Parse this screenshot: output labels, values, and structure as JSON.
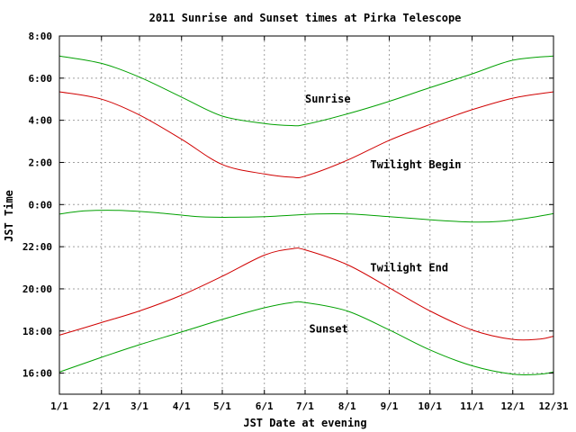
{
  "chart_data": {
    "type": "line",
    "title": "2011 Sunrise and Sunset times at Pirka Telescope",
    "xlabel": "JST Date at evening",
    "ylabel": "JST Time",
    "x_ticks": [
      "1/1",
      "2/1",
      "3/1",
      "4/1",
      "5/1",
      "6/1",
      "7/1",
      "8/1",
      "9/1",
      "10/1",
      "11/1",
      "12/1",
      "12/31"
    ],
    "x_tick_days": [
      1,
      32,
      60,
      91,
      121,
      152,
      182,
      213,
      244,
      274,
      305,
      335,
      365
    ],
    "xlim": [
      1,
      365
    ],
    "y_ticks": [
      "16:00",
      "18:00",
      "20:00",
      "22:00",
      "0:00",
      "2:00",
      "4:00",
      "6:00",
      "8:00"
    ],
    "y_tick_values": [
      16,
      18,
      20,
      22,
      24,
      26,
      28,
      30,
      32
    ],
    "ylim": [
      15,
      32
    ],
    "grid": true,
    "colors": {
      "sun": "#00a000",
      "twilight": "#d00000",
      "grid": "#a0a0a0"
    },
    "series": [
      {
        "color": "#00a000",
        "x": [
          1,
          32,
          60,
          91,
          121,
          152,
          172,
          182,
          213,
          244,
          274,
          305,
          335,
          365
        ],
        "y": [
          31.05,
          30.7,
          30.05,
          29.1,
          28.2,
          27.85,
          27.75,
          27.8,
          28.3,
          28.9,
          29.55,
          30.2,
          30.85,
          31.05
        ]
      },
      {
        "color": "#d00000",
        "x": [
          1,
          32,
          60,
          91,
          121,
          152,
          172,
          182,
          213,
          244,
          274,
          305,
          335,
          365
        ],
        "y": [
          29.35,
          29.0,
          28.25,
          27.1,
          25.9,
          25.45,
          25.3,
          25.35,
          26.1,
          27.05,
          27.8,
          28.5,
          29.05,
          29.35
        ]
      },
      {
        "color": "#00a000",
        "x": [
          1,
          20,
          45,
          75,
          105,
          135,
          160,
          190,
          215,
          245,
          280,
          305,
          325,
          345,
          365
        ],
        "y": [
          23.55,
          23.7,
          23.72,
          23.6,
          23.42,
          23.4,
          23.45,
          23.55,
          23.55,
          23.42,
          23.25,
          23.17,
          23.2,
          23.35,
          23.57
        ]
      },
      {
        "color": "#d00000",
        "x": [
          1,
          32,
          60,
          91,
          121,
          152,
          172,
          182,
          213,
          244,
          274,
          305,
          335,
          355,
          365
        ],
        "y": [
          17.8,
          18.4,
          18.95,
          19.7,
          20.6,
          21.6,
          21.9,
          21.85,
          21.15,
          20.05,
          18.95,
          18.05,
          17.6,
          17.62,
          17.75
        ]
      },
      {
        "color": "#00a000",
        "x": [
          1,
          32,
          60,
          91,
          121,
          152,
          172,
          182,
          213,
          244,
          274,
          305,
          335,
          355,
          365
        ],
        "y": [
          16.05,
          16.75,
          17.35,
          17.95,
          18.55,
          19.1,
          19.35,
          19.35,
          18.95,
          18.05,
          17.1,
          16.35,
          15.95,
          15.95,
          16.05
        ]
      }
    ],
    "annotations": [
      {
        "text": "Sunrise",
        "x": 182,
        "y": 29.0
      },
      {
        "text": "Twilight Begin",
        "x": 230,
        "y": 25.9
      },
      {
        "text": "Twilight End",
        "x": 230,
        "y": 21.0
      },
      {
        "text": "Sunset",
        "x": 185,
        "y": 18.1
      }
    ]
  }
}
